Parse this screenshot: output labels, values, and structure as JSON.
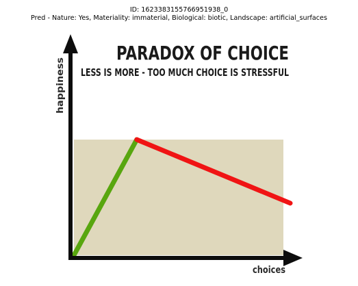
{
  "header": {
    "id_line": "ID: 1623383155766951938_0",
    "pred_line": "Pred - Nature: Yes, Materiality: immaterial, Biological: biotic, Landscape: artificial_surfaces"
  },
  "chart_data": {
    "type": "line",
    "title": "PARADOX OF CHOICE",
    "subtitle": "LESS IS MORE - TOO MUCH CHOICE IS STRESSFUL",
    "xlabel": "choices",
    "ylabel": "happiness",
    "x_ticks": [],
    "y_ticks": [],
    "xlim": [
      0,
      100
    ],
    "ylim": [
      0,
      100
    ],
    "region": {
      "x": [
        0,
        100
      ],
      "y": [
        0,
        100
      ],
      "color": "#dfd8bc"
    },
    "series": [
      {
        "color": "#58a60f",
        "points": [
          [
            0,
            0
          ],
          [
            30,
            100
          ]
        ]
      },
      {
        "color": "#f01414",
        "points": [
          [
            30,
            100
          ],
          [
            100,
            45
          ]
        ]
      }
    ],
    "colors": {
      "axis": "#0d0d0d"
    }
  }
}
